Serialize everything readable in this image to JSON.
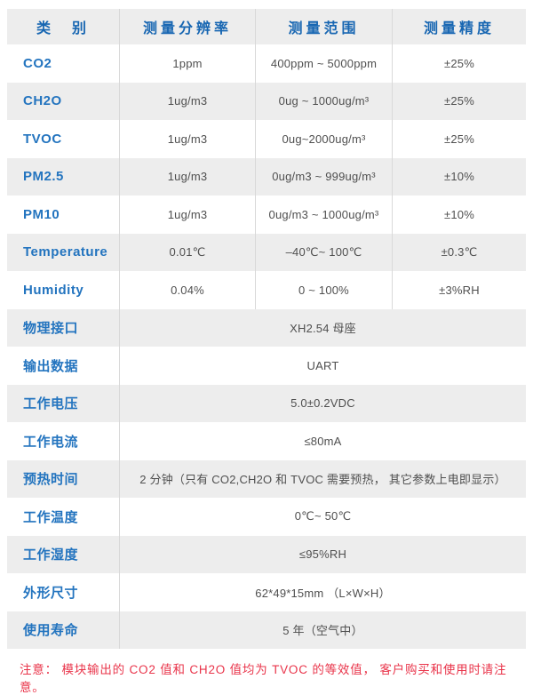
{
  "colors": {
    "accent-blue": "#1766b2",
    "label-blue": "#2374bf",
    "value-gray": "#4f4f4f",
    "alt-row-bg": "#ededed",
    "divider": "#d9d9d9",
    "note-red": "#e9344a"
  },
  "table": {
    "header": [
      "类　别",
      "测量分辨率",
      "测量范围",
      "测量精度"
    ],
    "sensor_rows": [
      {
        "label": "CO2",
        "resolution": "1ppm",
        "range": "400ppm ~ 5000ppm",
        "accuracy": "±25%"
      },
      {
        "label": "CH2O",
        "resolution": "1ug/m3",
        "range": "0ug ~ 1000ug/m³",
        "accuracy": "±25%"
      },
      {
        "label": "TVOC",
        "resolution": "1ug/m3",
        "range": "0ug~2000ug/m³",
        "accuracy": "±25%"
      },
      {
        "label": "PM2.5",
        "resolution": "1ug/m3",
        "range": "0ug/m3 ~ 999ug/m³",
        "accuracy": "±10%"
      },
      {
        "label": "PM10",
        "resolution": "1ug/m3",
        "range": "0ug/m3 ~ 1000ug/m³",
        "accuracy": "±10%"
      },
      {
        "label": "Temperature",
        "resolution": "0.01℃",
        "range": "–40℃~ 100℃",
        "accuracy": "±0.3℃"
      },
      {
        "label": "Humidity",
        "resolution": "0.04%",
        "range": "0 ~ 100%",
        "accuracy": "±3%RH"
      }
    ],
    "spec_rows": [
      {
        "label": "物理接口",
        "value": "XH2.54 母座"
      },
      {
        "label": "输出数据",
        "value": "UART"
      },
      {
        "label": "工作电压",
        "value": "5.0±0.2VDC"
      },
      {
        "label": "工作电流",
        "value": "≤80mA"
      },
      {
        "label": "预热时间",
        "value": "2 分钟（只有 CO2,CH2O 和 TVOC 需要预热， 其它参数上电即显示）"
      },
      {
        "label": "工作温度",
        "value": "0℃~ 50℃"
      },
      {
        "label": "工作湿度",
        "value": "≤95%RH"
      },
      {
        "label": "外形尺寸",
        "value": "62*49*15mm （L×W×H）"
      },
      {
        "label": "使用寿命",
        "value": "5 年（空气中）"
      }
    ]
  },
  "note": "注意： 模块输出的 CO2 值和 CH2O 值均为 TVOC 的等效值， 客户购买和使用时请注意。"
}
